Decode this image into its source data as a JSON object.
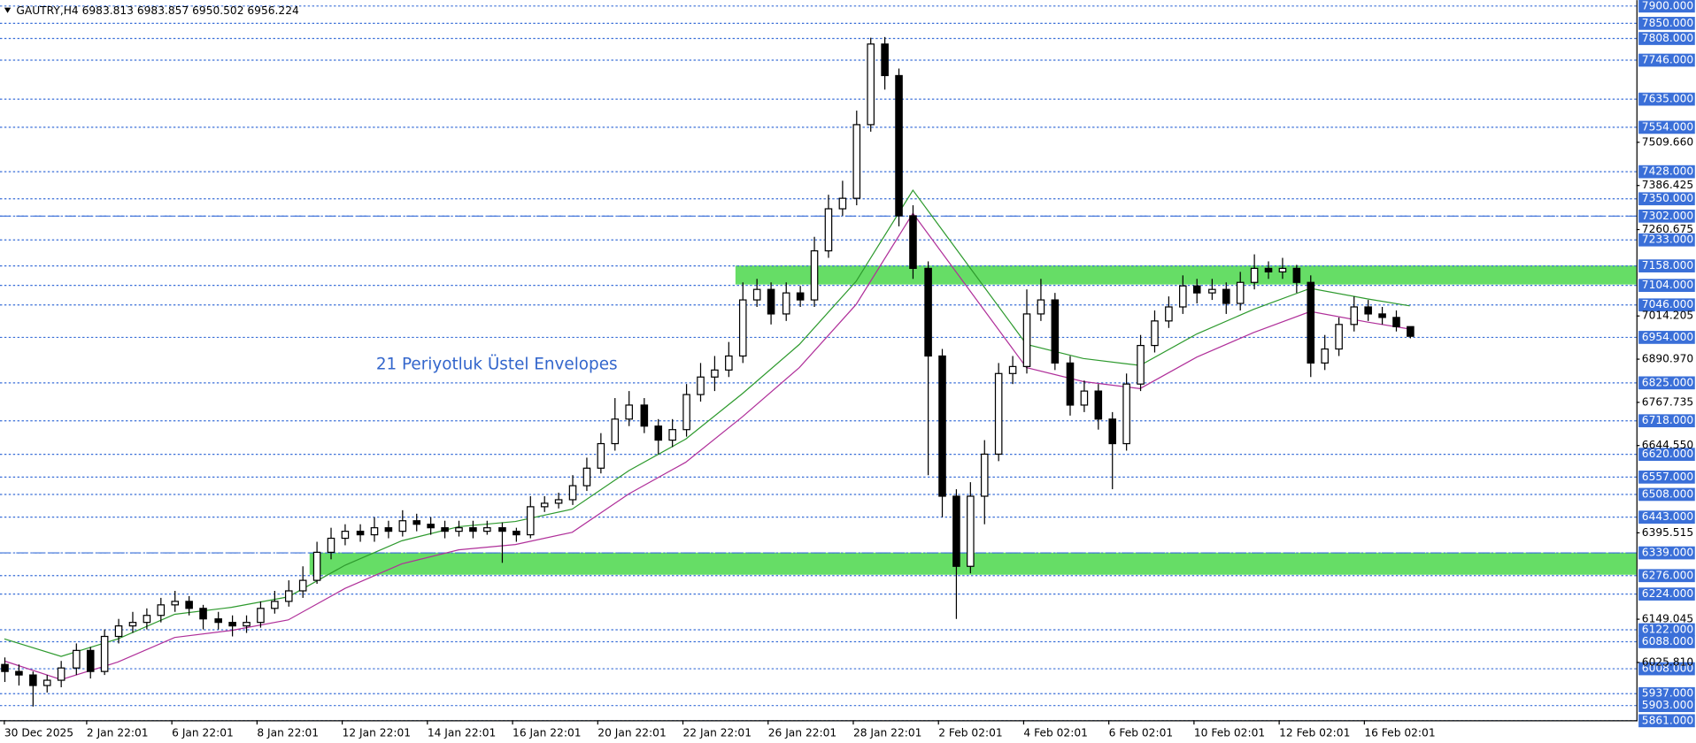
{
  "chart_data": {
    "type": "candlestick",
    "header": "GAUTRY,H4  6983.813 6983.857 6950.502 6956.224",
    "annotation": "21 Periyotluk Üstel Envelopes",
    "ylim": [
      5861,
      7900
    ],
    "xlim": [
      0,
      100
    ],
    "yticks": [
      {
        "value": 7509.66,
        "label": "7509.660"
      },
      {
        "value": 7386.425,
        "label": "7386.425"
      },
      {
        "value": 7260.675,
        "label": "7260.675"
      },
      {
        "value": 7014.205,
        "label": "7014.205"
      },
      {
        "value": 6890.97,
        "label": "6890.970"
      },
      {
        "value": 6767.735,
        "label": "6767.735"
      },
      {
        "value": 6644.55,
        "label": "6644.550"
      },
      {
        "value": 6395.515,
        "label": "6395.515"
      },
      {
        "value": 6149.045,
        "label": "6149.045"
      },
      {
        "value": 6025.81,
        "label": "6025.810"
      }
    ],
    "levels": [
      {
        "value": 7900,
        "label": "7900.000"
      },
      {
        "value": 7850,
        "label": "7850.000"
      },
      {
        "value": 7808,
        "label": "7808.000"
      },
      {
        "value": 7746,
        "label": "7746.000"
      },
      {
        "value": 7635,
        "label": "7635.000"
      },
      {
        "value": 7554,
        "label": "7554.000"
      },
      {
        "value": 7428,
        "label": "7428.000"
      },
      {
        "value": 7350,
        "label": "7350.000"
      },
      {
        "value": 7302,
        "label": "7302.000"
      },
      {
        "value": 7233,
        "label": "7233.000"
      },
      {
        "value": 7158,
        "label": "7158.000"
      },
      {
        "value": 7104,
        "label": "7104.000"
      },
      {
        "value": 7046,
        "label": "7046.000"
      },
      {
        "value": 6954,
        "label": "6954.000"
      },
      {
        "value": 6825,
        "label": "6825.000"
      },
      {
        "value": 6718,
        "label": "6718.000"
      },
      {
        "value": 6620,
        "label": "6620.000"
      },
      {
        "value": 6557,
        "label": "6557.000"
      },
      {
        "value": 6508,
        "label": "6508.000"
      },
      {
        "value": 6443,
        "label": "6443.000"
      },
      {
        "value": 6339,
        "label": "6339.000"
      },
      {
        "value": 6276,
        "label": "6276.000"
      },
      {
        "value": 6224,
        "label": "6224.000"
      },
      {
        "value": 6122,
        "label": "6122.000"
      },
      {
        "value": 6088,
        "label": "6088.000"
      },
      {
        "value": 6008,
        "label": "6008.000"
      },
      {
        "value": 5937,
        "label": "5937.000"
      },
      {
        "value": 5903,
        "label": "5903.000"
      },
      {
        "value": 5861,
        "label": "5861.000"
      }
    ],
    "level_color": "#3a6fd8",
    "dashed_lines": [
      7302,
      6339
    ],
    "zones": [
      {
        "from": 7104,
        "to": 7158,
        "start": 51.5,
        "color": "#66dd66"
      },
      {
        "from": 6276,
        "to": 6339,
        "start": 21.5,
        "color": "#66dd66"
      }
    ],
    "xticks": [
      {
        "value": 0,
        "label": "30 Dec 2025"
      },
      {
        "value": 5.8,
        "label": "2 Jan 22:01"
      },
      {
        "value": 11.8,
        "label": "6 Jan 22:01"
      },
      {
        "value": 17.8,
        "label": "8 Jan 22:01"
      },
      {
        "value": 23.8,
        "label": "12 Jan 22:01"
      },
      {
        "value": 29.8,
        "label": "14 Jan 22:01"
      },
      {
        "value": 35.8,
        "label": "16 Jan 22:01"
      },
      {
        "value": 41.8,
        "label": "20 Jan 22:01"
      },
      {
        "value": 47.8,
        "label": "22 Jan 22:01"
      },
      {
        "value": 53.8,
        "label": "26 Jan 22:01"
      },
      {
        "value": 59.8,
        "label": "28 Jan 22:01"
      },
      {
        "value": 65.8,
        "label": "2 Feb 02:01"
      },
      {
        "value": 71.8,
        "label": "4 Feb 02:01"
      },
      {
        "value": 77.8,
        "label": "6 Feb 02:01"
      },
      {
        "value": 83.8,
        "label": "10 Feb 02:01"
      },
      {
        "value": 89.8,
        "label": "12 Feb 02:01"
      },
      {
        "value": 95.8,
        "label": "16 Feb 02:01"
      }
    ],
    "ohlc": [
      [
        6020,
        6040,
        5970,
        6000
      ],
      [
        6000,
        6020,
        5960,
        5990
      ],
      [
        5990,
        6000,
        5900,
        5960
      ],
      [
        5960,
        5990,
        5940,
        5975
      ],
      [
        5975,
        6030,
        5955,
        6010
      ],
      [
        6010,
        6080,
        5990,
        6060
      ],
      [
        6060,
        6070,
        5980,
        6000
      ],
      [
        6000,
        6120,
        5990,
        6100
      ],
      [
        6100,
        6150,
        6080,
        6130
      ],
      [
        6130,
        6170,
        6110,
        6140
      ],
      [
        6140,
        6180,
        6120,
        6160
      ],
      [
        6160,
        6210,
        6140,
        6190
      ],
      [
        6190,
        6230,
        6170,
        6200
      ],
      [
        6200,
        6215,
        6160,
        6180
      ],
      [
        6180,
        6190,
        6120,
        6150
      ],
      [
        6150,
        6170,
        6120,
        6140
      ],
      [
        6140,
        6160,
        6100,
        6130
      ],
      [
        6130,
        6160,
        6110,
        6140
      ],
      [
        6140,
        6200,
        6125,
        6180
      ],
      [
        6180,
        6230,
        6165,
        6200
      ],
      [
        6200,
        6260,
        6185,
        6230
      ],
      [
        6230,
        6300,
        6210,
        6260
      ],
      [
        6260,
        6370,
        6250,
        6340
      ],
      [
        6340,
        6410,
        6320,
        6380
      ],
      [
        6380,
        6420,
        6360,
        6400
      ],
      [
        6400,
        6420,
        6370,
        6390
      ],
      [
        6390,
        6440,
        6370,
        6410
      ],
      [
        6410,
        6430,
        6380,
        6400
      ],
      [
        6400,
        6460,
        6385,
        6430
      ],
      [
        6430,
        6450,
        6400,
        6420
      ],
      [
        6420,
        6440,
        6390,
        6410
      ],
      [
        6410,
        6430,
        6380,
        6400
      ],
      [
        6400,
        6430,
        6385,
        6410
      ],
      [
        6410,
        6430,
        6380,
        6400
      ],
      [
        6400,
        6430,
        6390,
        6410
      ],
      [
        6410,
        6425,
        6310,
        6400
      ],
      [
        6400,
        6410,
        6370,
        6390
      ],
      [
        6390,
        6500,
        6380,
        6470
      ],
      [
        6470,
        6500,
        6455,
        6480
      ],
      [
        6480,
        6510,
        6465,
        6490
      ],
      [
        6490,
        6560,
        6475,
        6530
      ],
      [
        6530,
        6610,
        6515,
        6580
      ],
      [
        6580,
        6680,
        6565,
        6650
      ],
      [
        6650,
        6780,
        6630,
        6720
      ],
      [
        6720,
        6800,
        6700,
        6760
      ],
      [
        6760,
        6780,
        6680,
        6700
      ],
      [
        6700,
        6720,
        6620,
        6660
      ],
      [
        6660,
        6720,
        6640,
        6690
      ],
      [
        6690,
        6820,
        6670,
        6790
      ],
      [
        6790,
        6880,
        6770,
        6840
      ],
      [
        6840,
        6900,
        6800,
        6860
      ],
      [
        6860,
        6940,
        6840,
        6900
      ],
      [
        6900,
        7110,
        6880,
        7060
      ],
      [
        7060,
        7120,
        7040,
        7090
      ],
      [
        7090,
        7110,
        6990,
        7020
      ],
      [
        7020,
        7110,
        7000,
        7080
      ],
      [
        7080,
        7100,
        7040,
        7060
      ],
      [
        7060,
        7240,
        7040,
        7200
      ],
      [
        7200,
        7360,
        7180,
        7320
      ],
      [
        7320,
        7400,
        7300,
        7350
      ],
      [
        7350,
        7600,
        7330,
        7560
      ],
      [
        7560,
        7808,
        7540,
        7790
      ],
      [
        7790,
        7810,
        7660,
        7700
      ],
      [
        7700,
        7720,
        7270,
        7300
      ],
      [
        7300,
        7330,
        7120,
        7150
      ],
      [
        7150,
        7170,
        6560,
        6900
      ],
      [
        6900,
        6920,
        6440,
        6500
      ],
      [
        6500,
        6520,
        6150,
        6300
      ],
      [
        6300,
        6540,
        6280,
        6500
      ],
      [
        6500,
        6660,
        6420,
        6620
      ],
      [
        6620,
        6880,
        6600,
        6850
      ],
      [
        6850,
        6900,
        6820,
        6870
      ],
      [
        6870,
        7090,
        6850,
        7020
      ],
      [
        7020,
        7120,
        7000,
        7060
      ],
      [
        7060,
        7080,
        6860,
        6880
      ],
      [
        6880,
        6900,
        6730,
        6760
      ],
      [
        6760,
        6830,
        6740,
        6800
      ],
      [
        6800,
        6820,
        6690,
        6720
      ],
      [
        6720,
        6740,
        6520,
        6650
      ],
      [
        6650,
        6850,
        6630,
        6820
      ],
      [
        6820,
        6960,
        6800,
        6930
      ],
      [
        6930,
        7030,
        6910,
        7000
      ],
      [
        7000,
        7070,
        6980,
        7040
      ],
      [
        7040,
        7130,
        7020,
        7100
      ],
      [
        7100,
        7120,
        7050,
        7080
      ],
      [
        7080,
        7120,
        7060,
        7090
      ],
      [
        7090,
        7110,
        7020,
        7050
      ],
      [
        7050,
        7140,
        7030,
        7110
      ],
      [
        7110,
        7190,
        7090,
        7150
      ],
      [
        7150,
        7170,
        7120,
        7140
      ],
      [
        7140,
        7180,
        7120,
        7150
      ],
      [
        7150,
        7160,
        7080,
        7110
      ],
      [
        7110,
        7130,
        6840,
        6880
      ],
      [
        6880,
        6960,
        6860,
        6920
      ],
      [
        6920,
        7010,
        6900,
        6990
      ],
      [
        6990,
        7070,
        6970,
        7040
      ],
      [
        7040,
        7060,
        7000,
        7020
      ],
      [
        7020,
        7040,
        6990,
        7010
      ],
      [
        7010,
        7030,
        6970,
        6983.813
      ],
      [
        6983.813,
        6983.857,
        6950.502,
        6956.224
      ]
    ],
    "envelopes": [
      {
        "color": "#2e9a2e",
        "x": [
          0,
          4,
          8,
          12,
          16,
          20,
          24,
          28,
          32,
          36,
          40,
          44,
          48,
          52,
          56,
          60,
          64,
          68,
          72,
          76,
          80,
          84,
          88,
          92,
          96,
          99
        ],
        "values": [
          6093,
          6043,
          6093,
          6163,
          6183,
          6213,
          6303,
          6373,
          6413,
          6428,
          6463,
          6573,
          6663,
          6793,
          6933,
          7113,
          7373,
          7153,
          6933,
          6893,
          6873,
          6963,
          7033,
          7093,
          7063,
          7043
        ]
      },
      {
        "color": "#b0309a",
        "x": [
          0,
          4,
          8,
          12,
          16,
          20,
          24,
          28,
          32,
          36,
          40,
          44,
          48,
          52,
          56,
          60,
          64,
          68,
          72,
          76,
          80,
          84,
          88,
          92,
          96,
          99
        ],
        "values": [
          6030,
          5977,
          6027,
          6097,
          6117,
          6147,
          6237,
          6307,
          6347,
          6362,
          6397,
          6507,
          6597,
          6727,
          6867,
          7047,
          7307,
          7087,
          6867,
          6827,
          6807,
          6897,
          6967,
          7027,
          6997,
          6977
        ]
      }
    ]
  }
}
